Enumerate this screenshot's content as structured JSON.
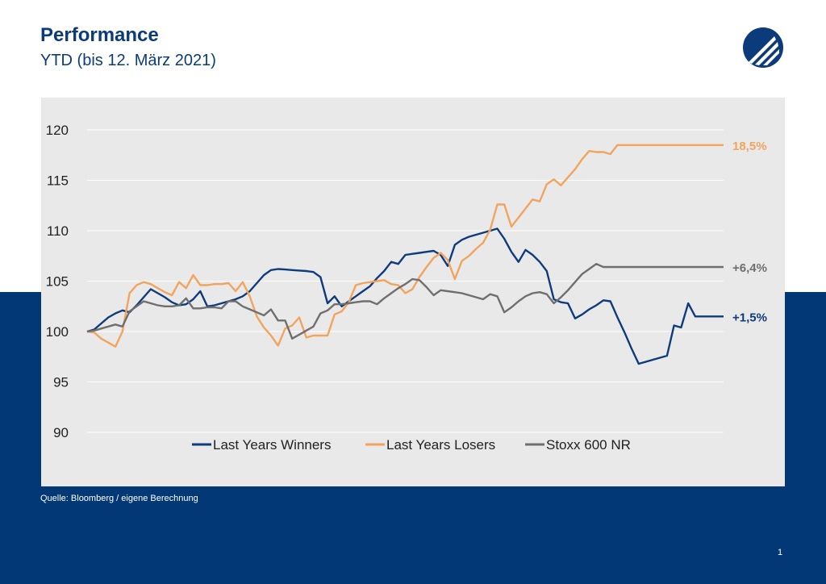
{
  "header": {
    "title": "Performance",
    "subtitle": "YTD (bis 12. März 2021)"
  },
  "footer": {
    "source": "Quelle: Bloomberg / eigene Berechnung",
    "page_number": "1"
  },
  "colors": {
    "brand_dark_blue": "#033876",
    "winners": "#0e3b7d",
    "losers": "#f2a45f",
    "stoxx": "#6f6f6f",
    "panel": "#e9e9e9",
    "grid": "#ffffff"
  },
  "icons": {
    "logo": "logo-icon"
  },
  "chart_data": {
    "type": "line",
    "title": "",
    "xlabel": "",
    "ylabel": "",
    "ylim": [
      90,
      120
    ],
    "yticks": [
      90,
      95,
      100,
      105,
      110,
      115,
      120
    ],
    "grid": true,
    "legend_position": "bottom",
    "x": [
      0,
      1,
      2,
      3,
      4,
      5,
      6,
      7,
      8,
      9,
      10,
      11,
      12,
      13,
      14,
      15,
      16,
      17,
      18,
      19,
      20,
      21,
      22,
      23,
      24,
      25,
      26,
      27,
      28,
      29,
      30,
      31,
      32,
      33,
      34,
      35,
      36,
      37,
      38,
      39,
      40,
      41,
      42,
      43,
      44,
      45,
      46,
      47,
      48,
      49,
      50,
      51,
      52,
      53,
      54,
      55,
      56,
      57,
      58,
      59,
      60,
      61,
      62,
      63,
      64,
      65,
      66,
      67,
      68,
      69,
      70,
      71,
      72,
      73,
      74,
      75,
      76,
      77,
      78,
      79,
      80,
      81,
      82,
      83,
      84,
      85,
      86,
      87,
      88,
      89,
      90
    ],
    "series": [
      {
        "name": "Last Years Winners",
        "color": "#0e3b7d",
        "end_label": "+1,5%",
        "values": [
          100.0,
          100.2,
          100.8,
          101.4,
          101.8,
          102.1,
          101.9,
          102.6,
          103.4,
          104.2,
          103.8,
          103.4,
          102.9,
          102.6,
          102.7,
          103.2,
          104.0,
          102.5,
          102.6,
          102.8,
          103.0,
          103.2,
          103.5,
          104.0,
          104.8,
          105.6,
          106.1,
          106.2,
          106.15,
          106.1,
          106.05,
          106.0,
          105.9,
          105.4,
          102.8,
          103.5,
          102.5,
          103.0,
          103.5,
          104.0,
          104.5,
          105.3,
          106.0,
          106.9,
          106.7,
          107.6,
          107.7,
          107.8,
          107.9,
          108.0,
          107.6,
          106.5,
          108.6,
          109.1,
          109.4,
          109.6,
          109.8,
          110.0,
          110.2,
          109.2,
          107.9,
          106.9,
          108.1,
          107.6,
          106.9,
          106.0,
          103.2,
          102.9,
          102.8,
          101.3,
          101.7,
          102.2,
          102.6,
          103.1,
          103.0,
          101.4,
          99.9,
          98.3,
          96.8,
          97.0,
          97.2,
          97.4,
          97.6,
          100.6,
          100.4,
          102.8,
          101.5,
          101.5,
          101.5,
          101.5,
          101.5
        ]
      },
      {
        "name": "Last Years Losers",
        "color": "#f2a45f",
        "end_label": "18,5%",
        "values": [
          100.0,
          99.9,
          99.3,
          98.9,
          98.5,
          100.0,
          103.8,
          104.6,
          104.9,
          104.7,
          104.3,
          103.9,
          103.6,
          104.9,
          104.3,
          105.6,
          104.6,
          104.6,
          104.7,
          104.7,
          104.8,
          104.0,
          104.9,
          103.5,
          101.5,
          100.4,
          99.6,
          98.6,
          100.3,
          100.6,
          101.4,
          99.4,
          99.6,
          99.6,
          99.6,
          101.7,
          102.0,
          102.9,
          104.6,
          104.8,
          104.9,
          105.0,
          105.1,
          104.7,
          104.6,
          103.8,
          104.2,
          105.4,
          106.4,
          107.3,
          107.8,
          107.1,
          105.2,
          107.0,
          107.5,
          108.2,
          108.8,
          110.1,
          112.6,
          112.6,
          110.4,
          111.3,
          112.2,
          113.1,
          112.9,
          114.6,
          115.1,
          114.5,
          115.3,
          116.1,
          117.1,
          117.9,
          117.8,
          117.8,
          117.6,
          118.5,
          118.5,
          118.5,
          118.5,
          118.5,
          118.5,
          118.5,
          118.5,
          118.5,
          118.5,
          118.5,
          118.5,
          118.5,
          118.5,
          118.5,
          118.5
        ]
      },
      {
        "name": "Stoxx 600 NR",
        "color": "#6f6f6f",
        "end_label": "+6,4%",
        "values": [
          100.0,
          100.1,
          100.3,
          100.5,
          100.7,
          100.5,
          102.0,
          102.5,
          103.0,
          102.8,
          102.6,
          102.5,
          102.5,
          102.6,
          103.3,
          102.3,
          102.3,
          102.4,
          102.4,
          102.3,
          103.0,
          103.0,
          102.5,
          102.2,
          101.9,
          101.6,
          102.2,
          101.1,
          101.1,
          99.3,
          99.7,
          100.1,
          100.5,
          101.8,
          102.1,
          102.7,
          102.7,
          102.8,
          102.9,
          103.0,
          103.0,
          102.7,
          103.3,
          103.8,
          104.3,
          104.7,
          105.2,
          105.1,
          104.4,
          103.6,
          104.1,
          104.0,
          103.9,
          103.8,
          103.6,
          103.4,
          103.2,
          103.7,
          103.5,
          101.9,
          102.4,
          103.0,
          103.5,
          103.8,
          103.9,
          103.7,
          102.8,
          103.4,
          104.1,
          104.9,
          105.7,
          106.2,
          106.7,
          106.4,
          106.4,
          106.4,
          106.4,
          106.4,
          106.4,
          106.4,
          106.4,
          106.4,
          106.4,
          106.4,
          106.4,
          106.4,
          106.4,
          106.4,
          106.4,
          106.4,
          106.4
        ]
      }
    ]
  }
}
